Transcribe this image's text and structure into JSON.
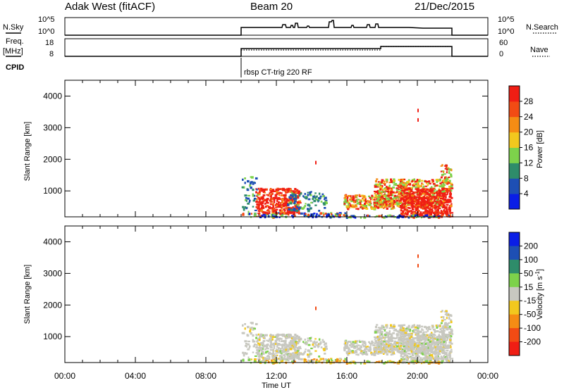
{
  "header": {
    "station": "Adak West (fitACF)",
    "beam": "Beam 20",
    "date": "21/Dec/2015"
  },
  "sky_panel": {
    "left_label": "N.Sky",
    "right_label": "N.Search",
    "ticks_left": [
      "10^5",
      "10^0"
    ],
    "ticks_right": [
      "10^5",
      "10^0"
    ]
  },
  "freq_panel": {
    "left_label_line1": "Freq.",
    "left_label_line2": "[MHz]",
    "ticks_left": [
      "18",
      "8"
    ],
    "right_label": "Nave",
    "ticks_right": [
      "60",
      "0"
    ]
  },
  "cpid": {
    "label": "CPID",
    "text": "rbsp CT-trig 220 RF"
  },
  "chart_data": [
    {
      "type": "heatmap",
      "parameter": "Power",
      "ylabel": "Slant Range [km]",
      "xlabel": "",
      "x_ticks": [
        "00:00",
        "04:00",
        "08:00",
        "12:00",
        "16:00",
        "20:00",
        "00:00"
      ],
      "y_ticks": [
        1000,
        2000,
        3000,
        4000
      ],
      "xlim_hours": [
        0,
        24
      ],
      "ylim_km": [
        180,
        4500
      ],
      "colorbar": {
        "label": "Power [dB]",
        "ticks": [
          "4",
          "8",
          "12",
          "16",
          "20",
          "24",
          "28"
        ],
        "colors": [
          "#0a1ee6",
          "#1e4fb4",
          "#2e8c6a",
          "#7dd24b",
          "#f2c81e",
          "#f58c14",
          "#f24b14",
          "#f01e14"
        ]
      }
    },
    {
      "type": "heatmap",
      "parameter": "Velocity",
      "ylabel": "Slant Range [km]",
      "xlabel": "Time UT",
      "x_ticks": [
        "00:00",
        "04:00",
        "08:00",
        "12:00",
        "16:00",
        "20:00",
        "00:00"
      ],
      "y_ticks": [
        1000,
        2000,
        3000,
        4000
      ],
      "xlim_hours": [
        0,
        24
      ],
      "ylim_km": [
        180,
        4500
      ],
      "colorbar": {
        "label": "Velocity [m s",
        "label_exp": "-1",
        "label_close": "]",
        "ticks": [
          "200",
          "100",
          "50",
          "15",
          "-15",
          "-50",
          "-100",
          "-200"
        ],
        "colors": [
          "#0a1ee6",
          "#1e4fb4",
          "#2e8c6a",
          "#7dd24b",
          "#c8c8c0",
          "#f2c81e",
          "#f58c14",
          "#f24b14",
          "#f01e14"
        ]
      }
    }
  ]
}
